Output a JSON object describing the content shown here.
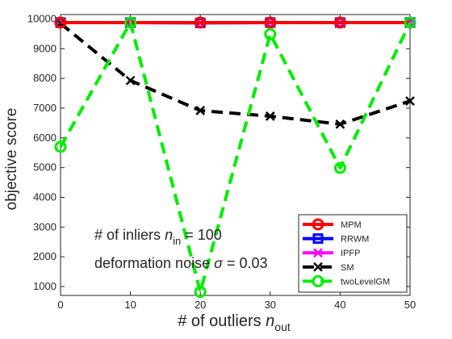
{
  "chart_data": {
    "type": "line",
    "xlabel": "# of outliers",
    "xlabel_var": "n",
    "xlabel_sub": "out",
    "ylabel": "objective score",
    "x": [
      0,
      10,
      20,
      30,
      40,
      50
    ],
    "xlim": [
      0,
      50
    ],
    "ylim": [
      700,
      10150
    ],
    "xticks": [
      "0",
      "10",
      "20",
      "30",
      "40",
      "50"
    ],
    "yticks": [
      "1000",
      "2000",
      "3000",
      "4000",
      "5000",
      "6000",
      "7000",
      "8000",
      "9000",
      "10000"
    ],
    "grid": false,
    "legend_position": "bottom-right",
    "series": [
      {
        "name": "MPM",
        "color": "#ff0000",
        "dash": "solid",
        "marker": "circle",
        "values": [
          9880,
          9880,
          9880,
          9880,
          9880,
          9880
        ]
      },
      {
        "name": "RRWM",
        "color": "#0000ff",
        "dash": "solid",
        "marker": "square",
        "values": [
          9880,
          9880,
          9870,
          9880,
          9880,
          9880
        ]
      },
      {
        "name": "IPFP",
        "color": "#ff00ff",
        "dash": "solid",
        "marker": "x",
        "values": [
          9880,
          9880,
          9870,
          9880,
          9880,
          9880
        ]
      },
      {
        "name": "SM",
        "color": "#000000",
        "dash": "dashed",
        "marker": "x",
        "values": [
          9850,
          7930,
          6920,
          6730,
          6460,
          7240
        ]
      },
      {
        "name": "twoLevelGM",
        "color": "#00ee00",
        "dash": "dashed",
        "marker": "circle",
        "values": [
          5700,
          9880,
          820,
          9490,
          4990,
          9880
        ]
      }
    ],
    "annotations": {
      "line1_prefix": "# of inliers",
      "line1_var": "n",
      "line1_sub": "in",
      "line1_suffix": " = 100",
      "line2_prefix": "deformation noise",
      "line2_var": "σ",
      "line2_suffix": " = 0.03"
    }
  }
}
